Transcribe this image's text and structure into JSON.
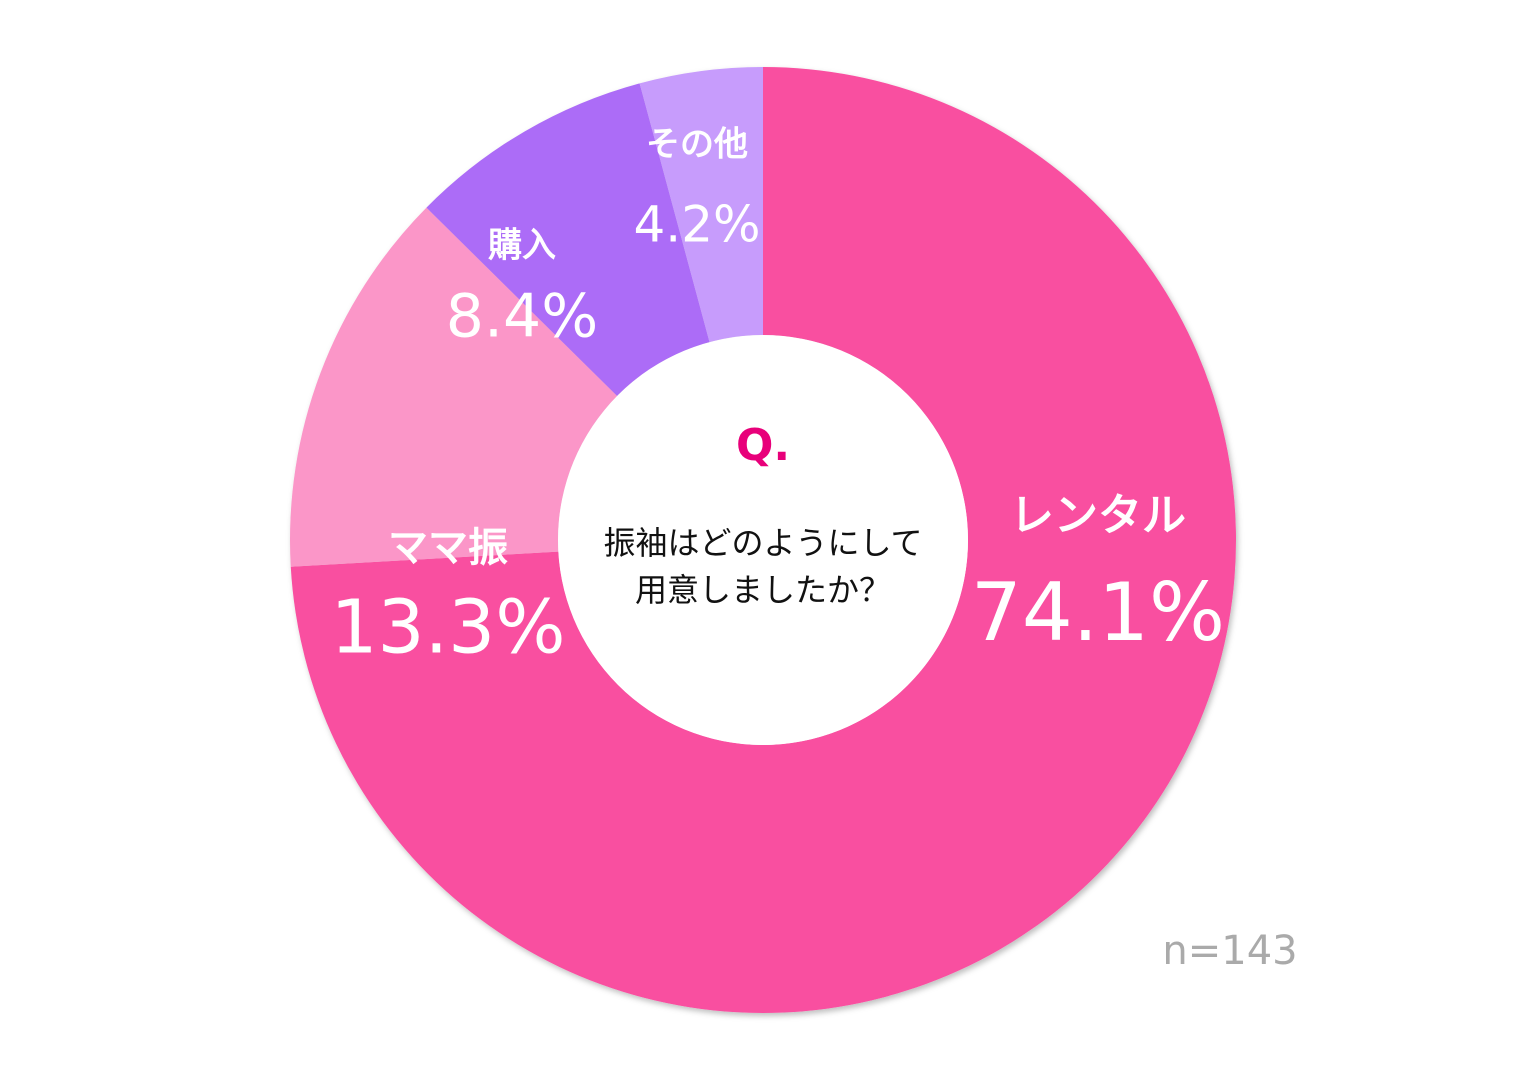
{
  "chart_data": {
    "type": "pie",
    "donut": true,
    "categories": [
      "レンタル",
      "ママ振",
      "購入",
      "その他"
    ],
    "values": [
      74.1,
      13.3,
      8.4,
      4.2
    ],
    "value_labels": [
      "74.1%",
      "13.3%",
      "8.4%",
      "4.2%"
    ],
    "colors": [
      "#f94fa0",
      "#fb96c8",
      "#ac6cf7",
      "#c79cfc"
    ],
    "center_label": "Q.",
    "center_text": [
      "振袖はどのようにして",
      "用意しましたか？"
    ],
    "note": "n=143"
  }
}
